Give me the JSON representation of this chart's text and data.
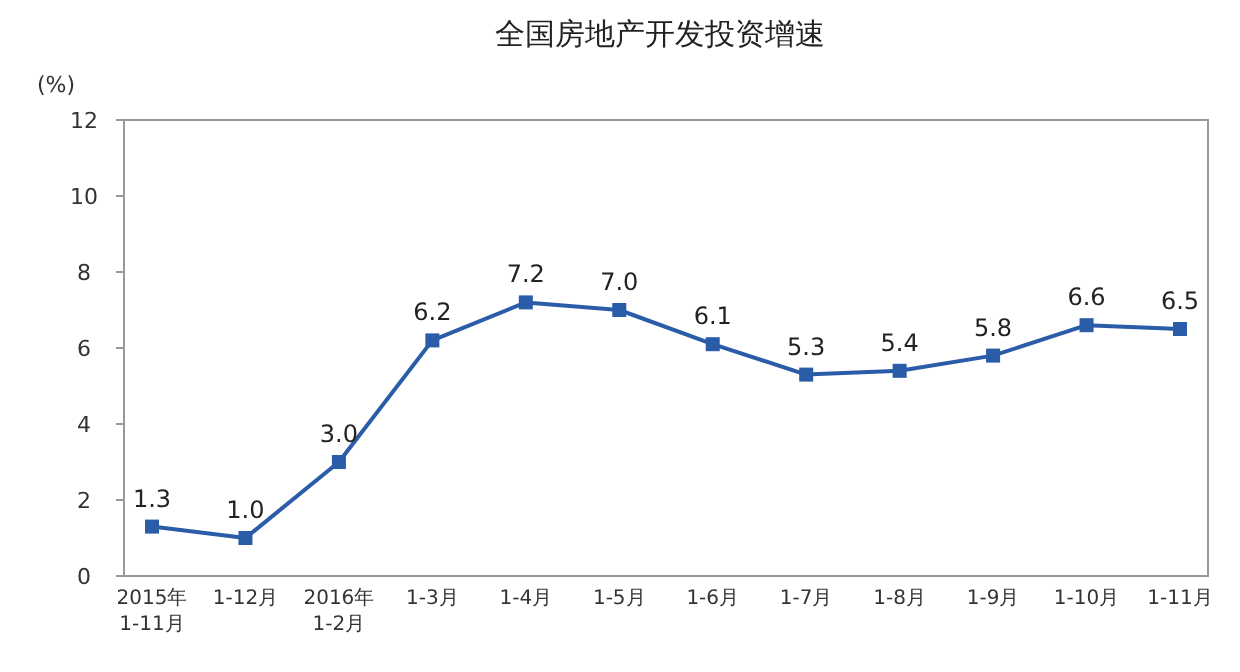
{
  "chart_data": {
    "type": "line",
    "title": "全国房地产开发投资增速",
    "ylabel": "(%)",
    "categories": [
      "2015年\n1-11月",
      "1-12月",
      "2016年\n1-2月",
      "1-3月",
      "1-4月",
      "1-5月",
      "1-6月",
      "1-7月",
      "1-8月",
      "1-9月",
      "1-10月",
      "1-11月"
    ],
    "series": [
      {
        "color": "#2a5ca8",
        "values": [
          1.3,
          1.0,
          3.0,
          6.2,
          7.2,
          7.0,
          6.1,
          5.3,
          5.4,
          5.8,
          6.6,
          6.5
        ],
        "value_labels": [
          "1.3",
          "1.0",
          "3.0",
          "6.2",
          "7.2",
          "7.0",
          "6.1",
          "5.3",
          "5.4",
          "5.8",
          "6.6",
          "6.5"
        ]
      }
    ],
    "ylim": [
      0,
      12
    ],
    "yticks": [
      0,
      2,
      4,
      6,
      8,
      10,
      12
    ],
    "grid": false,
    "marker": "square",
    "line_style": "solid"
  }
}
